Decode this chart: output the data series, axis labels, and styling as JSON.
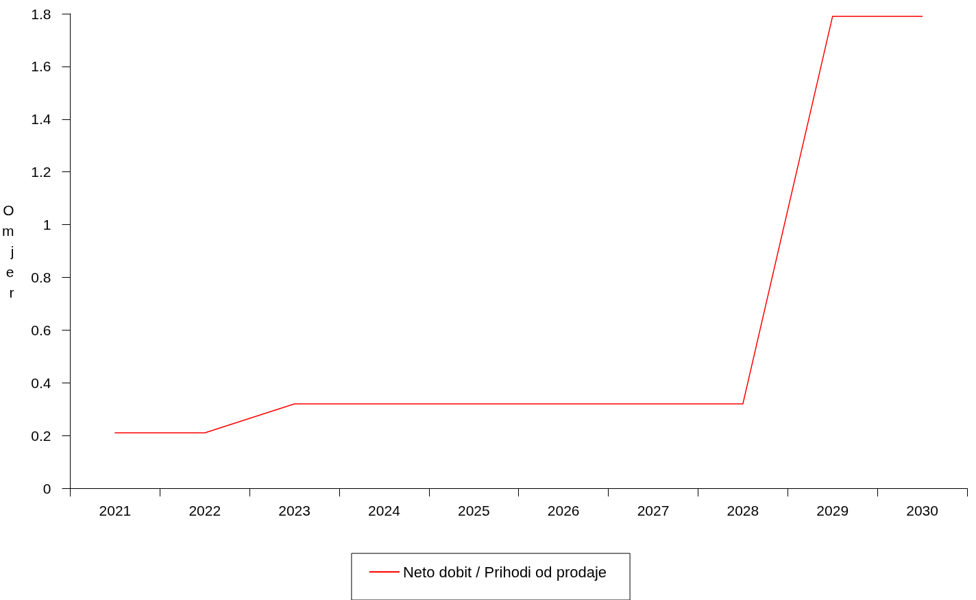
{
  "chart_data": {
    "type": "line",
    "ylabel": "Omjer",
    "categories": [
      "2021",
      "2022",
      "2023",
      "2024",
      "2025",
      "2026",
      "2027",
      "2028",
      "2029",
      "2030"
    ],
    "series": [
      {
        "name": "Neto dobit / Prihodi od prodaje",
        "color": "#ff0000",
        "values": [
          0.21,
          0.21,
          0.32,
          0.32,
          0.32,
          0.32,
          0.32,
          0.32,
          1.79,
          1.79
        ]
      }
    ],
    "ylim": [
      0,
      1.8
    ],
    "yticks": [
      0,
      0.2,
      0.4,
      0.6,
      0.8,
      1,
      1.2,
      1.4,
      1.6,
      1.8
    ],
    "grid": false,
    "legend": "bottom",
    "marker": "none",
    "line_style": "solid"
  }
}
